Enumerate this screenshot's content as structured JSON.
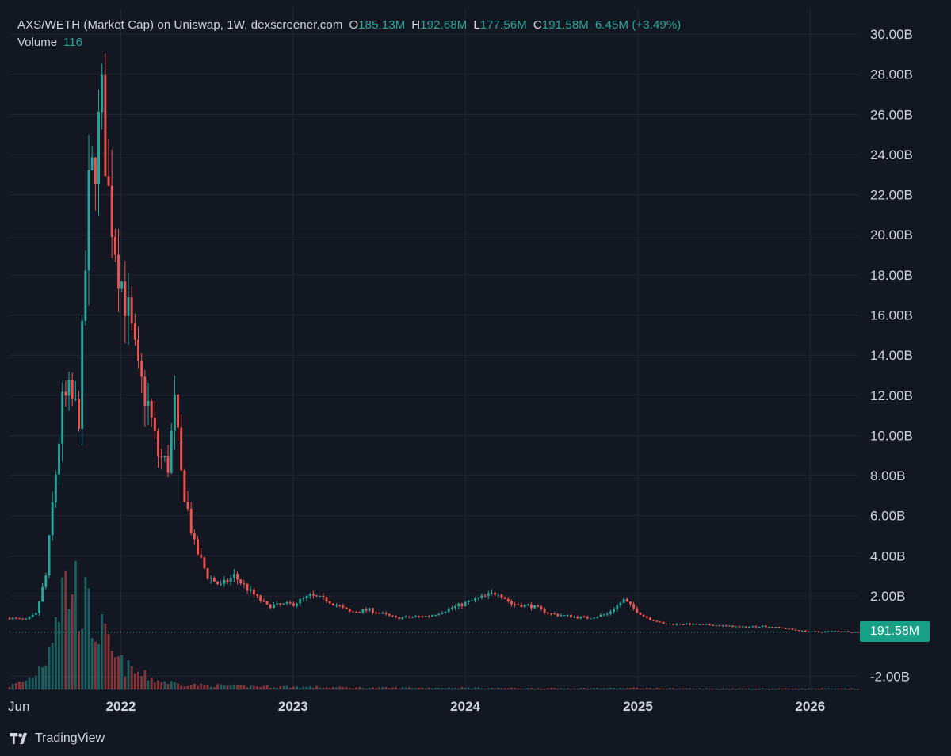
{
  "header": {
    "title": "AXS/WETH (Market Cap) on Uniswap, 1W, dexscreener.com",
    "open_label": "O",
    "open": "185.13M",
    "high_label": "H",
    "high": "192.68M",
    "low_label": "L",
    "low": "177.56M",
    "close_label": "C",
    "close": "191.58M",
    "change": "6.45M (+3.49%)",
    "volume_label": "Volume",
    "volume": "116"
  },
  "price_tag": "191.58M",
  "footer": {
    "brand": "TradingView"
  },
  "colors": {
    "up": "#26a69a",
    "down": "#ef5350",
    "background": "#131722",
    "grid": "#222631"
  },
  "chart_data": {
    "type": "candlestick",
    "timeframe": "1W",
    "y_unit": "USD market cap (billions)",
    "ylim": [
      -2.7,
      31
    ],
    "y_ticks": [
      -2,
      2,
      4,
      6,
      8,
      10,
      12,
      14,
      16,
      18,
      20,
      22,
      24,
      26,
      28,
      30
    ],
    "y_tick_labels": [
      "-2.00B",
      "2.00B",
      "4.00B",
      "6.00B",
      "8.00B",
      "10.00B",
      "12.00B",
      "14.00B",
      "16.00B",
      "18.00B",
      "20.00B",
      "22.00B",
      "24.00B",
      "26.00B",
      "28.00B",
      "30.00B"
    ],
    "x_tick_labels": [
      "Jun",
      "2022",
      "2023",
      "2024",
      "2025",
      "2026"
    ],
    "x_tick_dates": [
      "2021-06-01",
      "2022-01-01",
      "2023-01-01",
      "2024-01-01",
      "2025-01-01",
      "2026-01-01"
    ],
    "x_range": [
      "2021-05-10",
      "2026-04-13"
    ],
    "last_price": 0.19158,
    "grid": true,
    "series": [
      {
        "kind": "market_cap",
        "anchor_dates": [
          "2021-05-10",
          "2021-06-14",
          "2021-07-05",
          "2021-07-26",
          "2021-08-09",
          "2021-08-30",
          "2021-09-13",
          "2021-10-04",
          "2021-10-25",
          "2021-11-08",
          "2021-11-22",
          "2021-12-06",
          "2021-12-27",
          "2022-01-17",
          "2022-02-07",
          "2022-02-28",
          "2022-03-21",
          "2022-04-11",
          "2022-04-25",
          "2022-05-09",
          "2022-06-06",
          "2022-07-04",
          "2022-08-01",
          "2022-08-29",
          "2022-10-03",
          "2022-11-07",
          "2023-01-02",
          "2023-02-06",
          "2023-03-13",
          "2023-05-01",
          "2023-06-12",
          "2023-08-07",
          "2023-10-16",
          "2023-12-04",
          "2024-01-08",
          "2024-03-11",
          "2024-04-08",
          "2024-05-20",
          "2024-07-01",
          "2024-08-05",
          "2024-09-16",
          "2024-10-28",
          "2024-12-02",
          "2024-12-16",
          "2025-01-13",
          "2025-02-24",
          "2025-04-07",
          "2025-06-02",
          "2025-08-11",
          "2025-09-22",
          "2025-11-03",
          "2025-12-15",
          "2026-01-19",
          "2026-02-23",
          "2026-04-13"
        ],
        "anchor_values": [
          0.9,
          0.8,
          1.1,
          3.0,
          6.5,
          11.5,
          12.0,
          11.0,
          22.0,
          24.0,
          26.5,
          22.0,
          18.5,
          16.0,
          13.0,
          11.5,
          9.0,
          8.5,
          11.5,
          8.0,
          4.5,
          3.0,
          2.5,
          3.0,
          2.2,
          1.5,
          1.6,
          2.0,
          1.8,
          1.2,
          1.3,
          0.9,
          1.0,
          1.4,
          1.7,
          2.2,
          1.6,
          1.5,
          1.1,
          1.0,
          0.9,
          1.1,
          1.8,
          1.5,
          1.0,
          0.6,
          0.6,
          0.55,
          0.45,
          0.5,
          0.4,
          0.25,
          0.2,
          0.25,
          0.19
        ]
      },
      {
        "kind": "volume",
        "anchor_dates": [
          "2021-05-10",
          "2021-06-14",
          "2021-07-05",
          "2021-07-26",
          "2021-08-09",
          "2021-08-30",
          "2021-09-20",
          "2021-10-11",
          "2021-11-01",
          "2021-11-22",
          "2021-12-13",
          "2022-01-10",
          "2022-02-14",
          "2022-03-21",
          "2022-05-02",
          "2022-06-13",
          "2022-09-05",
          "2022-12-05",
          "2023-06-05",
          "2024-01-01",
          "2024-06-03",
          "2025-01-06",
          "2025-06-02",
          "2026-01-05",
          "2026-04-13"
        ],
        "anchor_values": [
          0.3,
          0.8,
          1.5,
          3.0,
          6.0,
          9.0,
          9.5,
          8.0,
          6.0,
          5.0,
          3.0,
          2.0,
          1.3,
          0.8,
          0.5,
          0.4,
          0.3,
          0.25,
          0.15,
          0.15,
          0.1,
          0.12,
          0.08,
          0.08,
          0.06
        ],
        "unit": "relative"
      }
    ]
  }
}
